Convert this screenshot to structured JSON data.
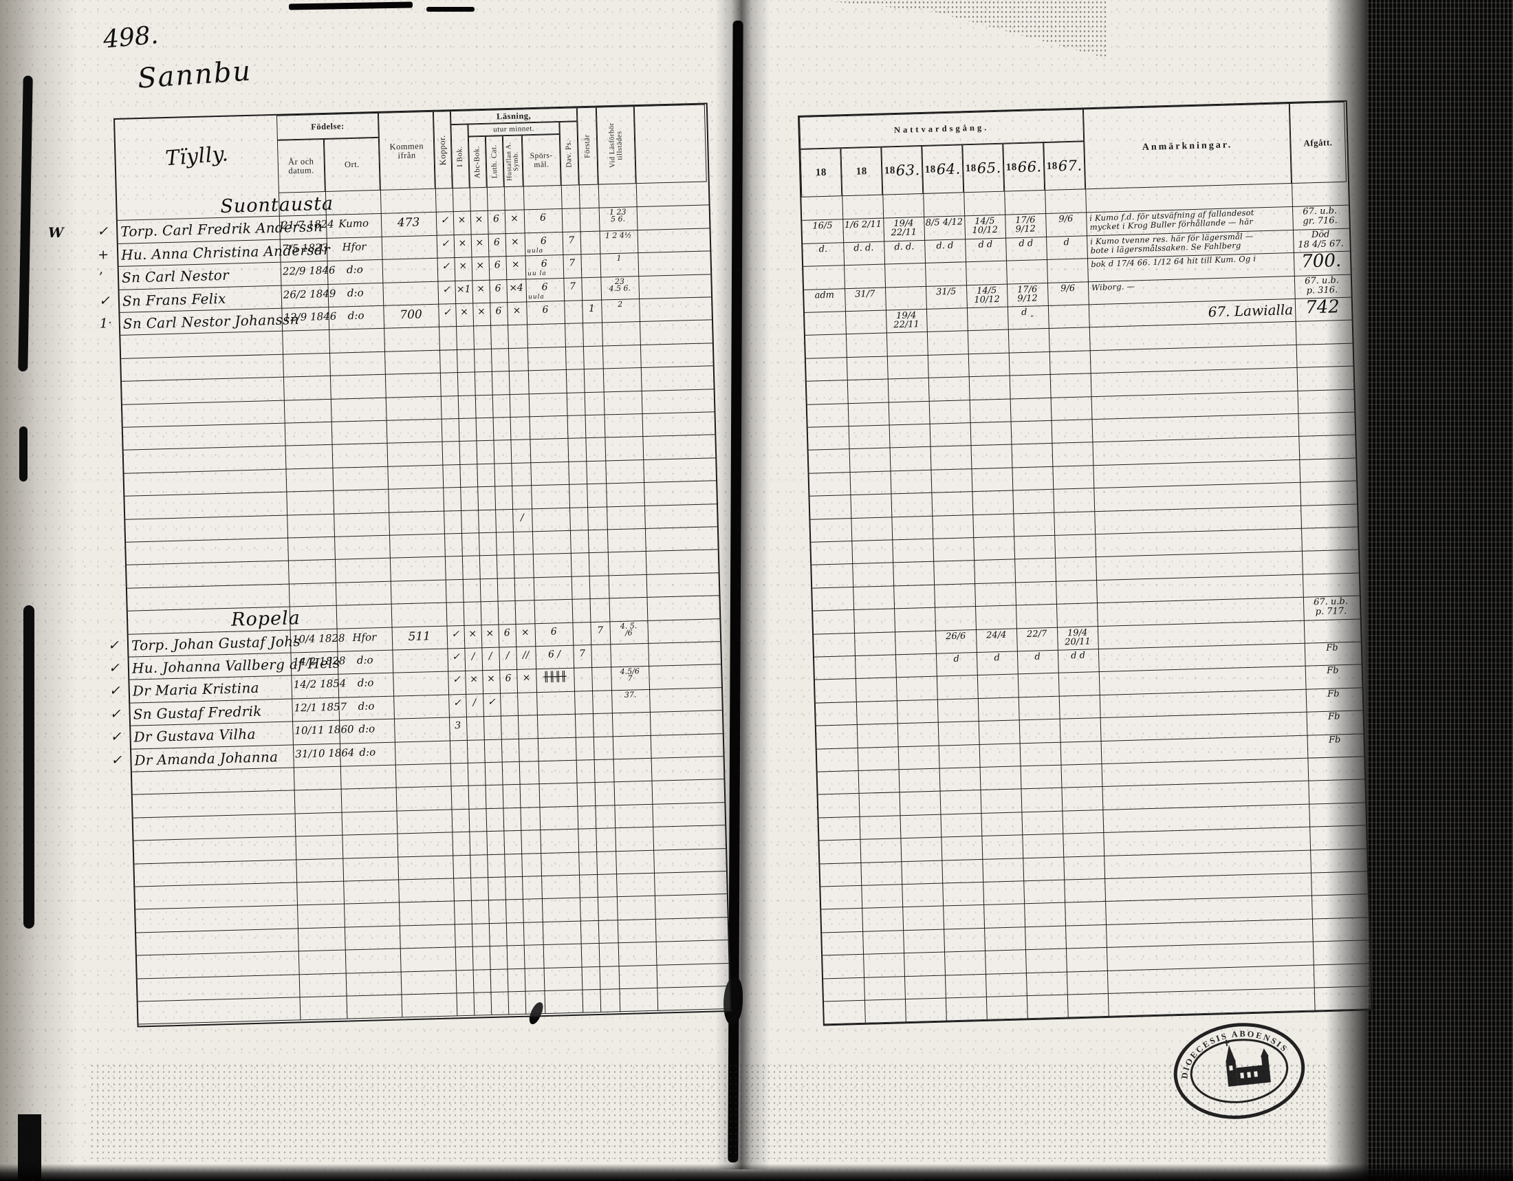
{
  "document": {
    "folio_number": "498.",
    "page_title_handwritten": "Sannbu",
    "margin_letter": "W",
    "stamp": {
      "top_text": "DIOECESIS ABOENSIS",
      "symbol": "church"
    }
  },
  "left_page": {
    "header": {
      "name_column_handwritten": "Tïylly.",
      "birth_group": "Födelse:",
      "birth_date": "År och datum.",
      "birth_place": "Ort.",
      "come_from": "Kommen ifrån",
      "smallpox": "Koppor.",
      "reading_group": "Läsning,",
      "reading_sub": "utur minnet.",
      "in_book": "I Bok.",
      "abc_book": "Abc-Bok.",
      "luther_catechism": "Luth. Cat.",
      "table_symbols": "Hustaflan A. Symb.",
      "questions": "Spörs-mål.",
      "davids_psalms": "Dav. Ps.",
      "understands": "Förstår",
      "attendance": "Vid Läsförhör tillstädes"
    },
    "rows": [
      {
        "g": "Suontausta"
      },
      {
        "m": "✓",
        "n": "Torp. Carl Fredrik Anderssn",
        "d": "21/7 1824",
        "o": "Kumo",
        "f": "473",
        "k": "✓",
        "b1": "×",
        "b2": "×",
        "b3": "6",
        "b4": "×",
        "sp": "6",
        "vl": "1 23\n5 6."
      },
      {
        "m": "+",
        "n": "Hu. Anna Christina Andersdr",
        "d": "7/5 1823",
        "o": "Hfor",
        "k": "✓",
        "b1": "×",
        "b2": "×",
        "b3": "6",
        "b4": "×",
        "sp": "6",
        "spn": "uula",
        "dv": "7",
        "vl": "1 2 4½"
      },
      {
        "m": "ʼ",
        "n": "Sn Carl Nestor",
        "d": "22/9 1846",
        "o": "d:o",
        "k": "✓",
        "b1": "×",
        "b2": "×",
        "b3": "6",
        "b4": "×",
        "sp": "6",
        "spn": "uu la",
        "dv": "7",
        "vl": "1"
      },
      {
        "m": "✓",
        "n": "Sn Frans Felix",
        "d": "26/2 1849",
        "o": "d:o",
        "k": "✓",
        "b1": "×1",
        "b2": "×",
        "b3": "6",
        "b4": "×4",
        "sp": "6",
        "spn": "uula",
        "dv": "7",
        "vl": "23\n4.5 6."
      },
      {
        "m": "1ˑ",
        "n": "Sn Carl Nestor Johanssn",
        "d": "12/9 1846",
        "o": "d:o",
        "f": "700",
        "k": "✓",
        "b1": "×",
        "b2": "×",
        "b3": "6",
        "b4": "×",
        "sp": "6",
        "fo": "1",
        "vl": "2"
      },
      null,
      null,
      null,
      null,
      null,
      null,
      null,
      null,
      {
        "b4": "∕"
      },
      null,
      null,
      null,
      {
        "g": "Ropela"
      },
      {
        "m": "✓",
        "n": "Torp. Johan Gustaf Johs",
        "d": "10/4 1828",
        "o": "Hfor",
        "f": "511",
        "k": "✓",
        "b1": "×",
        "b2": "×",
        "b3": "6",
        "b4": "×",
        "sp": "6",
        "fo": "7",
        "vl": "4. 5.\n∕6"
      },
      {
        "m": "✓",
        "n": "Hu. Johanna Vallberg af Hels",
        "d": "14/2 1828",
        "o": "d:o",
        "k": "✓",
        "b1": "∕",
        "b2": "∕",
        "b3": "∕",
        "b4": "∕∕",
        "sp": "6 ∕",
        "dv": "7"
      },
      {
        "m": "✓",
        "n": "Dr Maria Kristina",
        "d": "14/2 1854",
        "o": "d:o",
        "k": "✓",
        "b1": "×",
        "b2": "×",
        "b3": "6",
        "b4": "×",
        "sp": "╫╫╫╫",
        "vl": "4.5∕6\n7"
      },
      {
        "m": "✓",
        "n": "Sn Gustaf Fredrik",
        "d": "12/1 1857",
        "o": "d:o",
        "k": "✓",
        "b1": "∕",
        "b2": "✓",
        "vl": "37."
      },
      {
        "m": "✓",
        "n": "Dr Gustava Vilha",
        "d": "10/11 1860",
        "o": "d:o",
        "k": "3"
      },
      {
        "m": "✓",
        "n": "Dr Amanda Johanna",
        "d": "31/10 1864",
        "o": "d:o"
      },
      null,
      null,
      null,
      null,
      null,
      null,
      null,
      null,
      null,
      null,
      null
    ]
  },
  "right_page": {
    "header": {
      "communion_group": "Nattvardsgång.",
      "years": [
        {
          "printed": "18",
          "script": ""
        },
        {
          "printed": "18",
          "script": ""
        },
        {
          "printed": "18",
          "script": "63."
        },
        {
          "printed": "18",
          "script": "64."
        },
        {
          "printed": "18",
          "script": "65."
        },
        {
          "printed": "18",
          "script": "66."
        },
        {
          "printed": "18",
          "script": "67."
        }
      ],
      "remarks": "Anmärkningar.",
      "departed": "Afgått."
    },
    "rows": [
      null,
      {
        "c": [
          "16/5",
          "1/6  2/11",
          "19/4 22/11",
          "8/5 4/12",
          "14/5 10/12",
          "17/6 9/12",
          "9/6"
        ],
        "rem": "i Kumo f.d. för utsväfning af fallandesot\nmycket i Krog Buller förhållande — här",
        "afg": "67. u.b.\ngr. 716."
      },
      {
        "c": [
          "d.",
          "d. d.",
          "d. d.",
          "d. d",
          "d d",
          "d d",
          "d"
        ],
        "rem": "i Kumo tvenne res. här för lägersmål —\nbote i lägersmålssaken. Se Fahlberg",
        "afg": "Död\n18 4/5 67."
      },
      {
        "rem": "bok d 17/4 66. 1/12 64 hit till Kum. Og i",
        "afg": "700.",
        "emph": true
      },
      {
        "c": [
          "adm",
          "31/7",
          "",
          "31/5",
          "14/5 10/12",
          "17/6 9/12",
          "9/6"
        ],
        "rem": "Wiborg. —",
        "afg": "67. u.b.\np. 316."
      },
      {
        "c": [
          "",
          "",
          "19/4 22/11",
          "",
          "",
          "d ˯",
          ""
        ],
        "rem2": "67. Lawialla",
        "afg": "742",
        "emph": true
      },
      null,
      null,
      null,
      null,
      null,
      null,
      null,
      null,
      null,
      null,
      null,
      null,
      {
        "afg": "67. u.b.\np. 717."
      },
      {
        "c": [
          "",
          "",
          "",
          "26/6",
          "24/4",
          "22/7",
          "19/4 20/11"
        ]
      },
      {
        "c": [
          "",
          "",
          "",
          "d",
          "d",
          "d",
          "d d"
        ],
        "afg": "Fb"
      },
      {
        "afg": "Fb"
      },
      {
        "afg": "Fb"
      },
      {
        "afg": "Fb"
      },
      {
        "afg": "Fb"
      },
      null,
      null,
      null,
      null,
      null,
      null,
      null,
      null,
      null,
      null,
      null
    ]
  }
}
